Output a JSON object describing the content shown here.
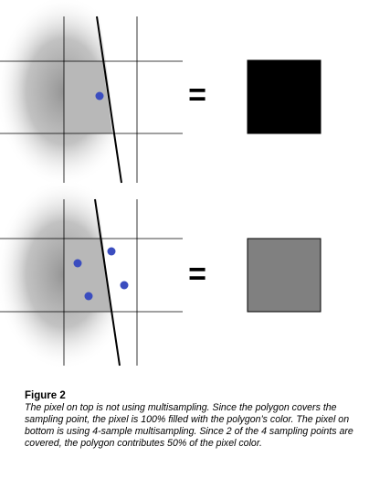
{
  "figure": {
    "caption_title": "Figure 2",
    "caption_text": "The pixel on top is not using multisampling. Since the polygon covers the sampling point, the pixel is 100% filled with the polygon’s color. The pixel on bottom is using 4-sample multisampling. Since 2 of the 4 sampling points are covered, the polygon contributes 50% of the pixel color.",
    "equals_symbol": "=",
    "colors": {
      "polygon_fill": "#b8b8b8",
      "shadow": "#9a9a9a",
      "grid_line": "#000000",
      "edge_line": "#000000",
      "sample_point": "#3b4dbf",
      "result_top": "#000000",
      "result_bottom": "#808080"
    }
  }
}
